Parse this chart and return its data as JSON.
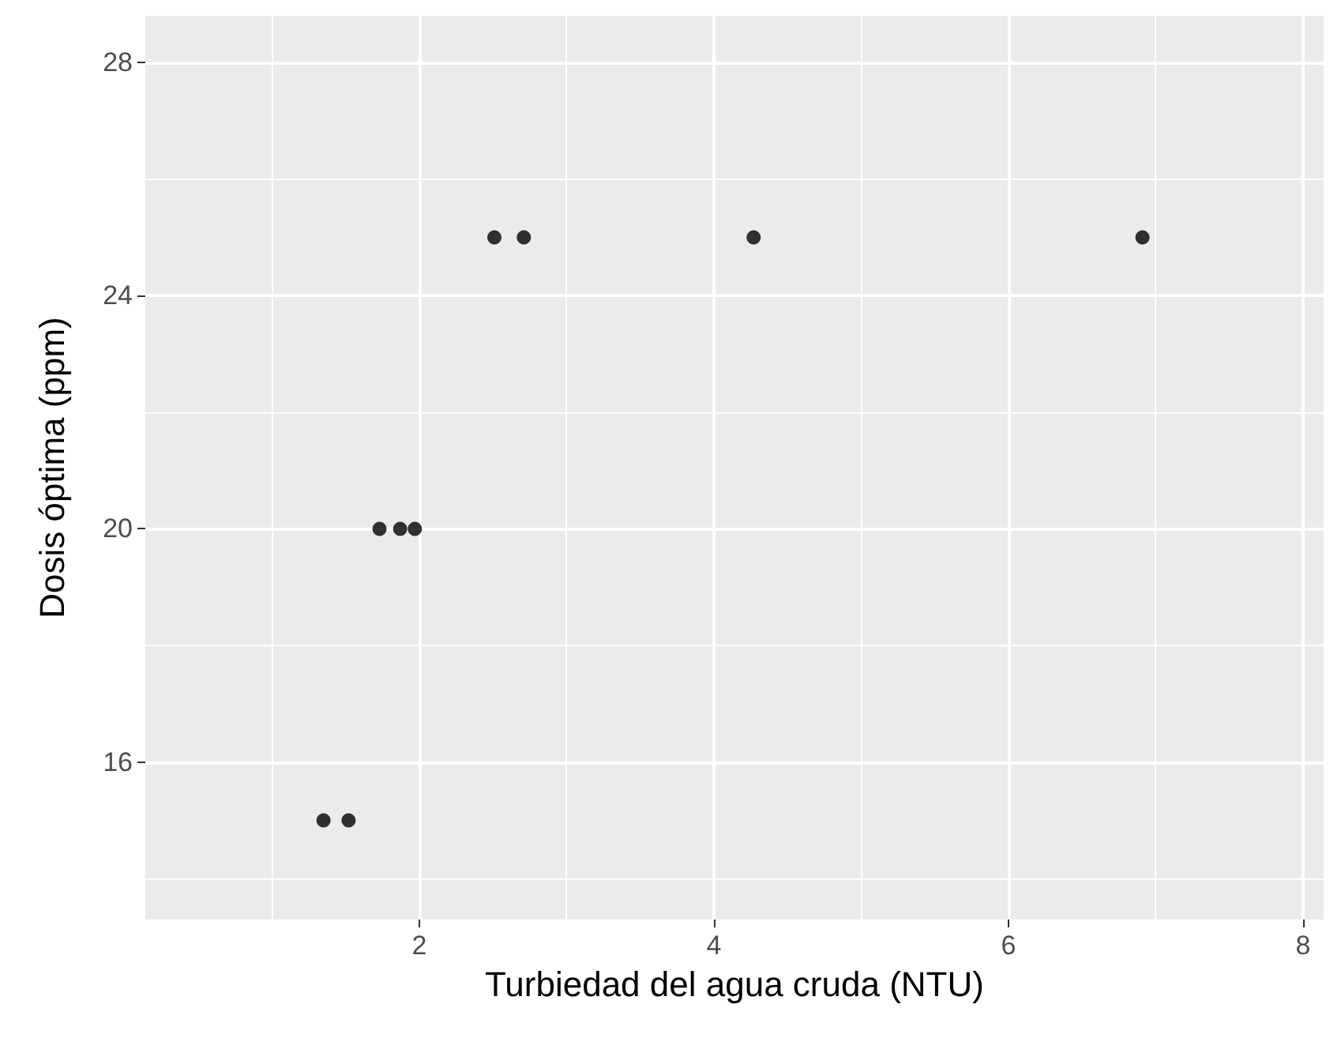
{
  "chart_data": {
    "type": "scatter",
    "xlabel": "Turbiedad del agua cruda (NTU)",
    "ylabel": "Dosis óptima (ppm)",
    "x": [
      1.35,
      1.52,
      1.73,
      1.87,
      1.97,
      2.51,
      2.71,
      4.27,
      6.91
    ],
    "values": [
      15,
      15,
      20,
      20,
      20,
      25,
      25,
      25,
      25
    ],
    "color": "#000000",
    "marker": "circle",
    "grid": true,
    "xlim": [
      0.14,
      8.14
    ],
    "xticks": [
      {
        "value": 1,
        "label": null
      },
      2,
      {
        "value": 3,
        "label": null
      },
      4,
      {
        "value": 5,
        "label": null
      },
      6,
      {
        "value": 7,
        "label": null
      },
      8
    ],
    "ylim": [
      13.3,
      28.8
    ],
    "yticks": [
      {
        "value": 14,
        "label": null
      },
      16,
      {
        "value": 18,
        "label": null
      },
      20,
      {
        "value": 22,
        "label": null
      },
      24,
      {
        "value": 26,
        "label": null
      },
      28
    ]
  }
}
